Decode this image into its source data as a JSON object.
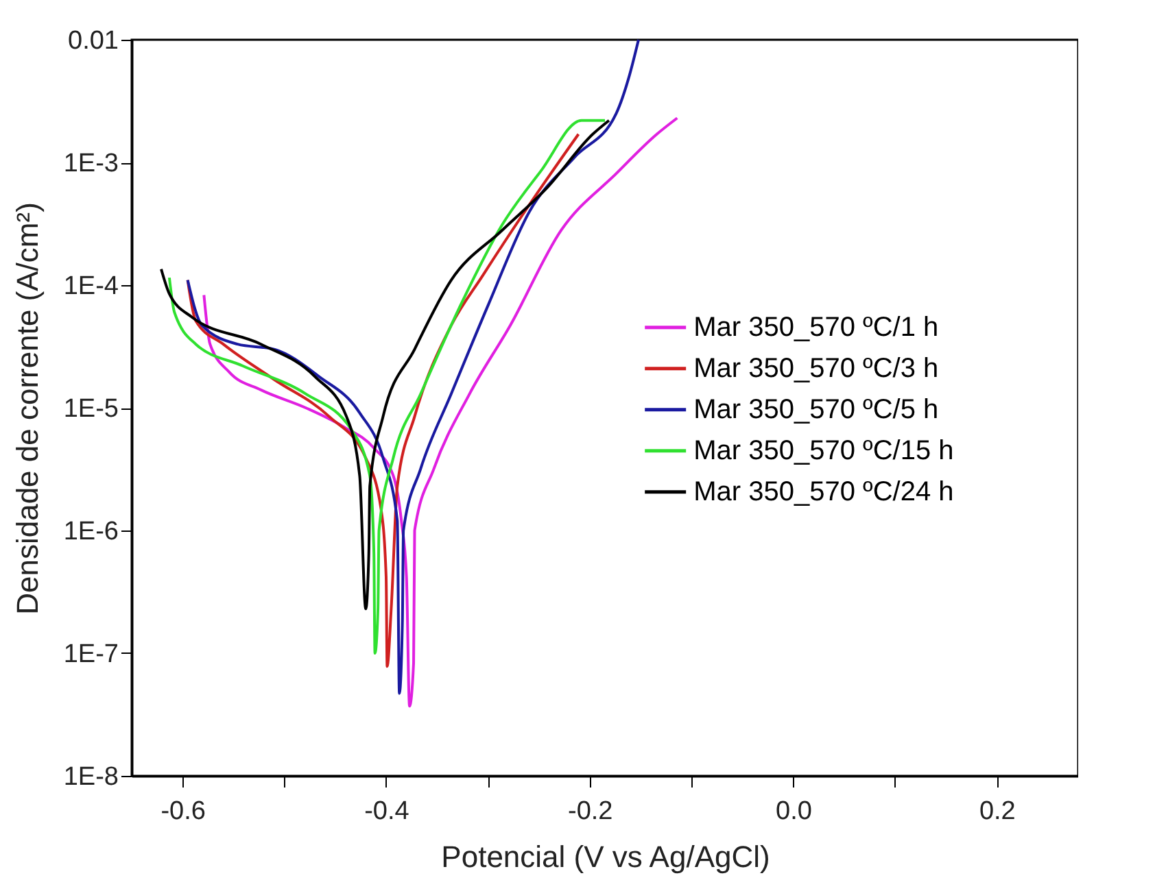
{
  "chart_data": {
    "type": "line",
    "xlabel": "Potencial (V vs Ag/AgCl)",
    "ylabel": "Densidade de corrente (A/cm²)",
    "log": "y",
    "grid": false,
    "legend": "right",
    "marker": "none",
    "line_style": "solid",
    "xlim": [
      -0.65,
      0.28
    ],
    "xticks": [
      -0.6,
      {
        "value": -0.5,
        "label": null
      },
      -0.4,
      {
        "value": -0.3,
        "label": null
      },
      -0.2,
      {
        "value": -0.1,
        "label": null
      },
      {
        "value": 0,
        "label": "0.0"
      },
      {
        "value": 0.1,
        "label": null
      },
      0.2
    ],
    "ylim": [
      1e-08,
      0.01
    ],
    "yticks": [
      {
        "value": 1e-08,
        "label": "1E-8"
      },
      {
        "value": 1e-07,
        "label": "1E-7"
      },
      {
        "value": 1e-06,
        "label": "1E-6"
      },
      {
        "value": 1e-05,
        "label": "1E-5"
      },
      {
        "value": 0.0001,
        "label": "1E-4"
      },
      {
        "value": 0.001,
        "label": "1E-3"
      },
      0.01
    ],
    "series": [
      {
        "name": "Mar 350_570 ºC/1 h",
        "color": "#e020e0",
        "x": [
          -0.579,
          -0.573,
          -0.554,
          -0.523,
          -0.479,
          -0.443,
          -0.412,
          -0.393,
          -0.385,
          -0.38,
          -0.377,
          -0.373,
          -0.372,
          -0.353,
          -0.318,
          -0.278,
          -0.228,
          -0.174,
          -0.134,
          -0.114
        ],
        "values": [
          8.3e-05,
          3.3e-05,
          1.95e-05,
          1.4e-05,
          1e-05,
          7.1e-06,
          4.7e-06,
          2.8e-06,
          1.2e-06,
          4.2e-07,
          3.7e-08,
          8.3e-08,
          1e-06,
          3.2e-06,
          1.3e-05,
          4.7e-05,
          0.00028,
          0.00081,
          0.0017,
          0.0023
        ]
      },
      {
        "name": "Mar 350_570 ºC/3 h",
        "color": "#d02020",
        "x": [
          -0.595,
          -0.587,
          -0.56,
          -0.51,
          -0.456,
          -0.42,
          -0.405,
          -0.4,
          -0.399,
          -0.395,
          -0.389,
          -0.372,
          -0.336,
          -0.305,
          -0.255,
          -0.211
        ],
        "values": [
          0.00011,
          5.1e-05,
          3.3e-05,
          1.7e-05,
          8.5e-06,
          3.9e-06,
          1.5e-06,
          4.2e-07,
          7.8e-08,
          2.3e-07,
          2.3e-06,
          8.5e-06,
          4.7e-05,
          0.00012,
          0.00051,
          0.0017
        ]
      },
      {
        "name": "Mar 350_570 ºC/5 h",
        "color": "#1a1aa0",
        "x": [
          -0.595,
          -0.581,
          -0.546,
          -0.51,
          -0.466,
          -0.426,
          -0.403,
          -0.389,
          -0.387,
          -0.384,
          -0.383,
          -0.366,
          -0.336,
          -0.299,
          -0.259,
          -0.215,
          -0.174,
          -0.161,
          -0.152
        ],
        "values": [
          0.00011,
          4.7e-05,
          3.3e-05,
          3e-05,
          1.8e-05,
          9.1e-06,
          3.9e-06,
          1.2e-06,
          4.7e-08,
          1.8e-07,
          1e-06,
          3.2e-06,
          1.3e-05,
          7.1e-05,
          0.0004,
          0.0011,
          0.0025,
          0.0051,
          0.01
        ]
      },
      {
        "name": "Mar 350_570 ºC/15 h",
        "color": "#30e030",
        "x": [
          -0.613,
          -0.608,
          -0.587,
          -0.541,
          -0.479,
          -0.434,
          -0.416,
          -0.412,
          -0.411,
          -0.408,
          -0.407,
          -0.393,
          -0.366,
          -0.326,
          -0.286,
          -0.248,
          -0.208,
          -0.185
        ],
        "values": [
          0.000115,
          6e-05,
          3.3e-05,
          2.2e-05,
          1.3e-05,
          6.6e-06,
          2.8e-06,
          6.5e-07,
          1e-07,
          2.3e-07,
          1e-06,
          3.9e-06,
          1.3e-05,
          7.1e-05,
          0.00031,
          0.00085,
          0.0022,
          0.0022
        ]
      },
      {
        "name": "Mar 350_570 ºC/24 h",
        "color": "#000000",
        "x": [
          -0.621,
          -0.613,
          -0.591,
          -0.523,
          -0.47,
          -0.439,
          -0.426,
          -0.42,
          -0.417,
          -0.416,
          -0.403,
          -0.372,
          -0.336,
          -0.286,
          -0.242,
          -0.197,
          -0.181
        ],
        "values": [
          0.000135,
          8.5e-05,
          5.5e-05,
          3.3e-05,
          1.8e-05,
          8.5e-06,
          2.8e-06,
          2.3e-07,
          6.5e-07,
          2.3e-06,
          8.5e-06,
          3e-05,
          0.00011,
          0.00028,
          0.00062,
          0.0017,
          0.0022
        ]
      }
    ]
  }
}
